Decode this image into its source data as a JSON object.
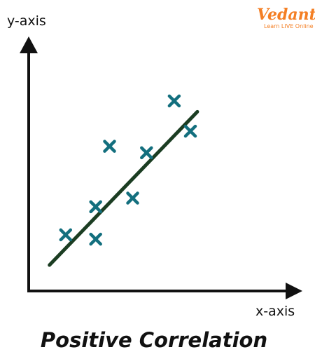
{
  "logo": {
    "word": "Vedantu",
    "tagline": "Learn LIVE Online",
    "color": "#f47f24"
  },
  "colors": {
    "axis": "#111111",
    "marker": "#136f7e",
    "trendline": "#1b3d22"
  },
  "chart_data": {
    "type": "scatter",
    "title": "Positive Correlation",
    "xlabel": "x-axis",
    "ylabel": "y-axis",
    "xlim": [
      0,
      10
    ],
    "ylim": [
      0,
      10
    ],
    "grid": false,
    "ticks": false,
    "series": [
      {
        "marker": "x",
        "points": [
          {
            "x": 1.6,
            "y": 2.6
          },
          {
            "x": 2.9,
            "y": 2.4
          },
          {
            "x": 2.9,
            "y": 3.9
          },
          {
            "x": 3.5,
            "y": 6.7
          },
          {
            "x": 4.5,
            "y": 4.3
          },
          {
            "x": 5.1,
            "y": 6.4
          },
          {
            "x": 6.3,
            "y": 8.8
          },
          {
            "x": 7.0,
            "y": 7.4
          }
        ]
      }
    ],
    "trendline": {
      "x": [
        0.9,
        7.3
      ],
      "y": [
        1.2,
        8.3
      ]
    }
  }
}
